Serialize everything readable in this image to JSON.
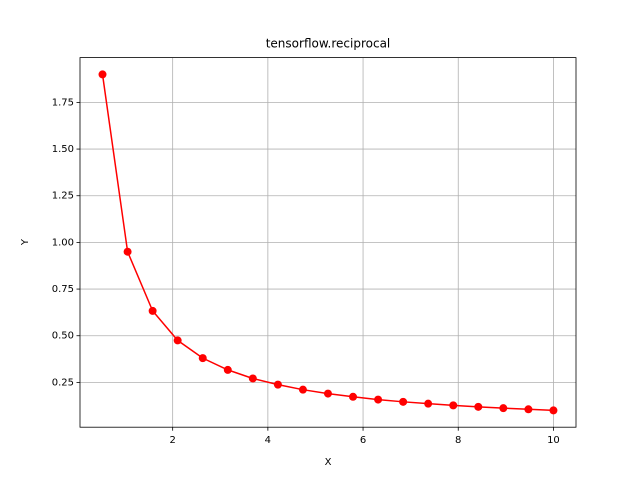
{
  "chart_data": {
    "type": "line",
    "title": "tensorflow.reciprocal",
    "x_label": "X",
    "y_label": "Y",
    "x": [
      0.526,
      1.053,
      1.579,
      2.105,
      2.632,
      3.158,
      3.684,
      4.211,
      4.737,
      5.263,
      5.789,
      6.316,
      6.842,
      7.368,
      7.895,
      8.421,
      8.947,
      9.474,
      10
    ],
    "series": [
      {
        "name": "reciprocal",
        "color": "#ff0000",
        "values": [
          1.9,
          0.95,
          0.633,
          0.475,
          0.38,
          0.317,
          0.271,
          0.238,
          0.211,
          0.19,
          0.173,
          0.158,
          0.146,
          0.136,
          0.127,
          0.119,
          0.112,
          0.106,
          0.1
        ]
      }
    ],
    "xlim": [
      0.053,
      10.474
    ],
    "ylim": [
      0.01,
      1.99
    ],
    "xticks": [
      2,
      4,
      6,
      8,
      10
    ],
    "yticks": [
      0.25,
      {
        "value": 0.5,
        "label": "0.50"
      },
      0.75,
      {
        "value": 1.0,
        "label": "1.00"
      },
      1.25,
      {
        "value": 1.5,
        "label": "1.50"
      },
      1.75
    ],
    "grid": true
  }
}
